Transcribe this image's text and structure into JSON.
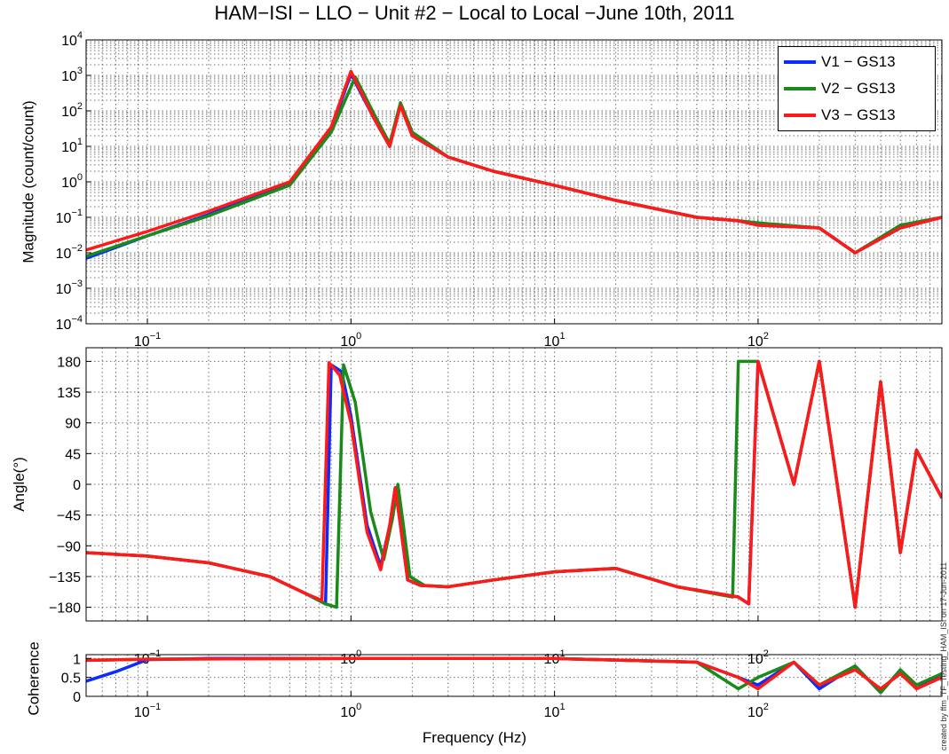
{
  "title": "HAM−ISI − LLO − Unit #2 − Local to Local −June 10th, 2011",
  "xlabel": "Frequency (Hz)",
  "sidenote": "created by ffm_TF_Testing_HAM_ISI on 17-Jun-2011",
  "legend": [
    {
      "label": "V1 − GS13",
      "color": "#0a2cff"
    },
    {
      "label": "V2 − GS13",
      "color": "#1a8a1a"
    },
    {
      "label": "V3 − GS13",
      "color": "#ff1a1a"
    }
  ],
  "chart_data": [
    {
      "type": "line",
      "ylabel": "Magnitude (count/count)",
      "xscale": "log",
      "yscale": "log",
      "xlim": [
        0.05,
        800
      ],
      "ylim": [
        0.0001,
        10000
      ],
      "xticks": [
        {
          "v": 0.1,
          "b": "10",
          "e": "−1"
        },
        {
          "v": 1,
          "b": "10",
          "e": "0"
        },
        {
          "v": 10,
          "b": "10",
          "e": "1"
        },
        {
          "v": 100,
          "b": "10",
          "e": "2"
        }
      ],
      "yticks": [
        {
          "v": 0.0001,
          "b": "10",
          "e": "−4"
        },
        {
          "v": 0.001,
          "b": "10",
          "e": "−3"
        },
        {
          "v": 0.01,
          "b": "10",
          "e": "−2"
        },
        {
          "v": 0.1,
          "b": "10",
          "e": "−1"
        },
        {
          "v": 1,
          "b": "10",
          "e": "0"
        },
        {
          "v": 10,
          "b": "10",
          "e": "1"
        },
        {
          "v": 100,
          "b": "10",
          "e": "2"
        },
        {
          "v": 1000,
          "b": "10",
          "e": "3"
        },
        {
          "v": 10000,
          "b": "10",
          "e": "4"
        }
      ],
      "grid": true,
      "series": [
        {
          "name": "V1 − GS13",
          "color": "#0a2cff",
          "x": [
            0.05,
            0.1,
            0.2,
            0.5,
            0.8,
            1.0,
            1.3,
            1.55,
            1.75,
            2.0,
            3,
            5,
            10,
            20,
            50,
            80,
            100,
            200,
            300,
            500,
            800
          ],
          "y": [
            0.007,
            0.03,
            0.12,
            0.9,
            30,
            1100,
            60,
            10,
            150,
            20,
            5,
            2,
            0.8,
            0.3,
            0.1,
            0.08,
            0.06,
            0.05,
            0.01,
            0.05,
            0.1
          ]
        },
        {
          "name": "V2 − GS13",
          "color": "#1a8a1a",
          "x": [
            0.05,
            0.1,
            0.2,
            0.5,
            0.8,
            1.05,
            1.3,
            1.55,
            1.75,
            2.0,
            3,
            5,
            10,
            20,
            50,
            80,
            100,
            200,
            300,
            500,
            800
          ],
          "y": [
            0.008,
            0.03,
            0.11,
            0.8,
            25,
            900,
            80,
            12,
            170,
            25,
            5,
            2,
            0.8,
            0.3,
            0.1,
            0.08,
            0.07,
            0.05,
            0.01,
            0.06,
            0.1
          ]
        },
        {
          "name": "V3 − GS13",
          "color": "#ff1a1a",
          "x": [
            0.05,
            0.1,
            0.2,
            0.5,
            0.8,
            1.0,
            1.3,
            1.55,
            1.75,
            2.0,
            3,
            5,
            10,
            20,
            50,
            80,
            100,
            200,
            300,
            500,
            800
          ],
          "y": [
            0.012,
            0.04,
            0.15,
            1.0,
            35,
            1300,
            60,
            10,
            140,
            20,
            5,
            2,
            0.8,
            0.3,
            0.1,
            0.08,
            0.06,
            0.05,
            0.01,
            0.05,
            0.1
          ]
        }
      ]
    },
    {
      "type": "line",
      "ylabel": "Angle(°)",
      "xscale": "log",
      "xlim": [
        0.05,
        800
      ],
      "ylim": [
        -200,
        200
      ],
      "xticks": [
        {
          "v": 0.1,
          "b": "10",
          "e": "−1"
        },
        {
          "v": 1,
          "b": "10",
          "e": "0"
        },
        {
          "v": 10,
          "b": "10",
          "e": "1"
        },
        {
          "v": 100,
          "b": "10",
          "e": "2"
        }
      ],
      "yticks": [
        {
          "v": -180,
          "t": "−180"
        },
        {
          "v": -135,
          "t": "−135"
        },
        {
          "v": -90,
          "t": "−90"
        },
        {
          "v": -45,
          "t": "−45"
        },
        {
          "v": 0,
          "t": "0"
        },
        {
          "v": 45,
          "t": "45"
        },
        {
          "v": 90,
          "t": "90"
        },
        {
          "v": 135,
          "t": "135"
        },
        {
          "v": 180,
          "t": "180"
        }
      ],
      "grid": true,
      "series": [
        {
          "name": "V1 − GS13",
          "color": "#0a2cff",
          "x": [
            0.05,
            0.1,
            0.2,
            0.4,
            0.6,
            0.75,
            0.8,
            0.9,
            1.0,
            1.2,
            1.4,
            1.55,
            1.65,
            1.75,
            1.9,
            2.2,
            3,
            5,
            10,
            20,
            40,
            80,
            90,
            100,
            150,
            200,
            300,
            400,
            500,
            600,
            800
          ],
          "y": [
            -100,
            -105,
            -115,
            -135,
            -160,
            -175,
            175,
            165,
            100,
            -60,
            -120,
            -60,
            -5,
            -60,
            -140,
            -148,
            -150,
            -140,
            -128,
            -123,
            -150,
            -165,
            -175,
            180,
            0,
            180,
            -180,
            150,
            -100,
            50,
            -20
          ]
        },
        {
          "name": "V2 − GS13",
          "color": "#1a8a1a",
          "x": [
            0.05,
            0.1,
            0.2,
            0.4,
            0.6,
            0.75,
            0.85,
            0.92,
            1.05,
            1.25,
            1.45,
            1.6,
            1.7,
            1.8,
            1.95,
            2.3,
            3,
            5,
            10,
            20,
            40,
            75,
            80,
            100,
            150,
            200,
            300,
            400,
            500,
            600,
            800
          ],
          "y": [
            -100,
            -105,
            -115,
            -135,
            -160,
            -175,
            -180,
            175,
            120,
            -40,
            -110,
            -50,
            0,
            -55,
            -135,
            -148,
            -150,
            -140,
            -128,
            -123,
            -150,
            -165,
            180,
            180,
            0,
            180,
            -180,
            150,
            -100,
            50,
            -20
          ]
        },
        {
          "name": "V3 − GS13",
          "color": "#ff1a1a",
          "x": [
            0.05,
            0.1,
            0.2,
            0.4,
            0.6,
            0.72,
            0.78,
            0.88,
            1.0,
            1.2,
            1.4,
            1.55,
            1.65,
            1.75,
            1.9,
            2.2,
            3,
            5,
            10,
            20,
            40,
            80,
            90,
            100,
            150,
            200,
            300,
            400,
            500,
            600,
            800
          ],
          "y": [
            -100,
            -105,
            -115,
            -135,
            -160,
            -170,
            178,
            160,
            90,
            -70,
            -125,
            -60,
            -5,
            -60,
            -140,
            -148,
            -150,
            -140,
            -128,
            -123,
            -150,
            -165,
            -175,
            180,
            0,
            180,
            -180,
            150,
            -100,
            50,
            -20
          ]
        }
      ]
    },
    {
      "type": "line",
      "ylabel": "Coherence",
      "xscale": "log",
      "xlim": [
        0.05,
        800
      ],
      "ylim": [
        0,
        1.1
      ],
      "xticks": [
        {
          "v": 0.1,
          "b": "10",
          "e": "−1"
        },
        {
          "v": 1,
          "b": "10",
          "e": "0"
        },
        {
          "v": 10,
          "b": "10",
          "e": "1"
        },
        {
          "v": 100,
          "b": "10",
          "e": "2"
        }
      ],
      "yticks": [
        {
          "v": 0,
          "t": "0"
        },
        {
          "v": 0.5,
          "t": "0.5"
        },
        {
          "v": 1,
          "t": "1"
        }
      ],
      "grid": true,
      "series": [
        {
          "name": "V1 − GS13",
          "color": "#0a2cff",
          "x": [
            0.05,
            0.07,
            0.1,
            0.2,
            1,
            10,
            50,
            80,
            100,
            150,
            200,
            300,
            400,
            500,
            600,
            800
          ],
          "y": [
            0.4,
            0.65,
            0.97,
            1.0,
            1.0,
            1.0,
            0.9,
            0.5,
            0.3,
            0.9,
            0.2,
            0.8,
            0.1,
            0.7,
            0.2,
            0.6
          ]
        },
        {
          "name": "V2 − GS13",
          "color": "#1a8a1a",
          "x": [
            0.05,
            0.1,
            1,
            10,
            50,
            80,
            100,
            150,
            200,
            300,
            400,
            500,
            600,
            800
          ],
          "y": [
            0.95,
            0.98,
            1.0,
            1.0,
            0.9,
            0.2,
            0.5,
            0.9,
            0.3,
            0.8,
            0.1,
            0.7,
            0.3,
            0.6
          ]
        },
        {
          "name": "V3 − GS13",
          "color": "#ff1a1a",
          "x": [
            0.05,
            0.1,
            1,
            10,
            50,
            80,
            100,
            150,
            200,
            300,
            400,
            500,
            600,
            800
          ],
          "y": [
            0.95,
            0.98,
            1.0,
            1.0,
            0.9,
            0.5,
            0.2,
            0.9,
            0.3,
            0.7,
            0.2,
            0.6,
            0.2,
            0.5
          ]
        }
      ]
    }
  ]
}
